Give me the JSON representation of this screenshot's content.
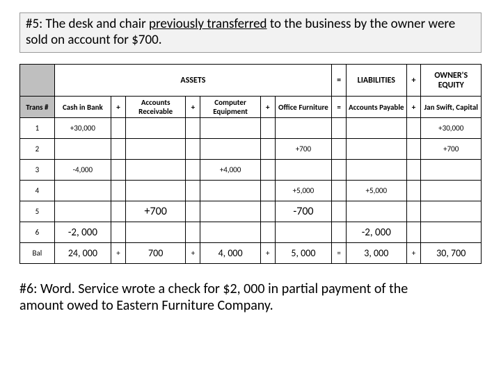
{
  "title": {
    "prefix": "#5:  The desk and chair ",
    "underlined": "previously transferred",
    "suffix": " to the business by the owner were sold on account for $700."
  },
  "headers": {
    "assets": "ASSETS",
    "eq1": "=",
    "liabilities": "LIABILITIES",
    "plus1": "+",
    "equity": "OWNER'S EQUITY",
    "trans": "Trans #",
    "cash": "Cash in Bank",
    "ar": "Accounts Receivable",
    "ce": "Computer Equipment",
    "of": "Office Furniture",
    "ap": "Accounts Payable",
    "cap": "Jan Swift, Capital",
    "p": "+",
    "e": "="
  },
  "rows": {
    "r1": {
      "n": "1",
      "cash": "+30,000",
      "cap": "+30,000"
    },
    "r2": {
      "n": "2",
      "of": "+700",
      "cap": "+700"
    },
    "r3": {
      "n": "3",
      "cash": "-4,000",
      "ce": "+4,000"
    },
    "r4": {
      "n": "4",
      "of": "+5,000",
      "ap": "+5,000"
    },
    "r5": {
      "n": "5",
      "ar": "+700",
      "of": "-700"
    },
    "r6": {
      "n": "6",
      "cash": "-2, 000",
      "ap": "-2, 000"
    },
    "bal": {
      "n": "Bal",
      "cash": "24, 000",
      "p": "+",
      "ar": "700",
      "ce": "4, 000",
      "of": "5, 000",
      "e": "=",
      "ap": "3, 000",
      "cap": "30, 700"
    }
  },
  "footer": {
    "line1": "#6:  Word. Service wrote a check for $2, 000 in partial payment of the",
    "line2": "amount owed to Eastern Furniture Company."
  }
}
